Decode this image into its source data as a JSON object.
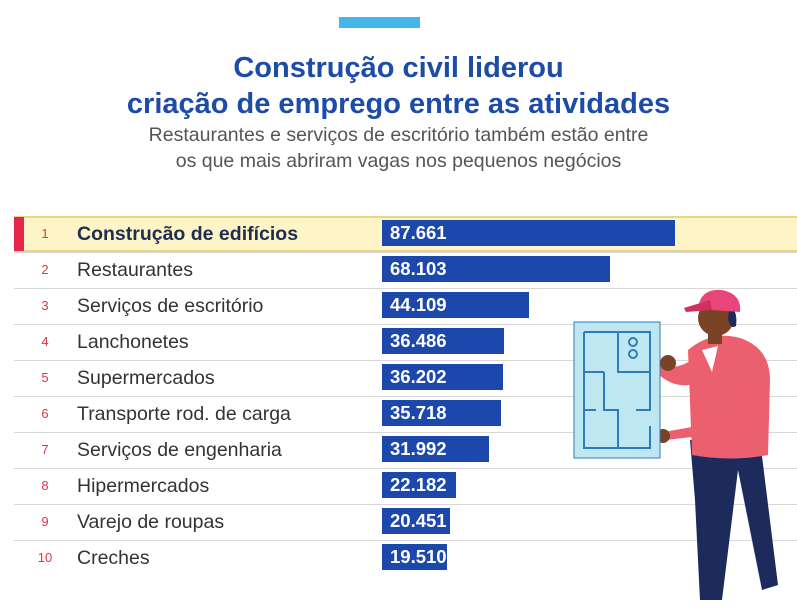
{
  "header": {
    "title_line1": "Construção civil liderou",
    "title_line2": "criação de emprego entre as atividades",
    "subtitle_line1": "Restaurantes e serviços de escritório também estão entre",
    "subtitle_line2": "os que mais abriram vagas nos pequenos negócios"
  },
  "colors": {
    "accent": "#45b6ea",
    "title": "#1d4ba8",
    "bar": "#1c47ab",
    "highlight_bg": "#fdf5c8",
    "highlight_marker": "#e8264a",
    "rank_number": "#e53249"
  },
  "illustration": {
    "icon": "worker-holding-blueprint-icon"
  },
  "chart_data": {
    "type": "bar",
    "orientation": "horizontal",
    "ranks": [
      "1",
      "2",
      "3",
      "4",
      "5",
      "6",
      "7",
      "8",
      "9",
      "10"
    ],
    "categories": [
      "Construção de edifícios",
      "Restaurantes",
      "Serviços de escritório",
      "Lanchonetes",
      "Supermercados",
      "Transporte rod. de carga",
      "Serviços de engenharia",
      "Hipermercados",
      "Varejo de roupas",
      "Creches"
    ],
    "values": [
      87661,
      68103,
      44109,
      36486,
      36202,
      35718,
      31992,
      22182,
      20451,
      19510
    ],
    "value_labels": [
      "87.661",
      "68.103",
      "44.109",
      "36.486",
      "36.202",
      "35.718",
      "31.992",
      "22.182",
      "20.451",
      "19.510"
    ],
    "highlighted_index": 0,
    "xlim": [
      0,
      87661
    ],
    "grid": false,
    "legend": "none"
  }
}
